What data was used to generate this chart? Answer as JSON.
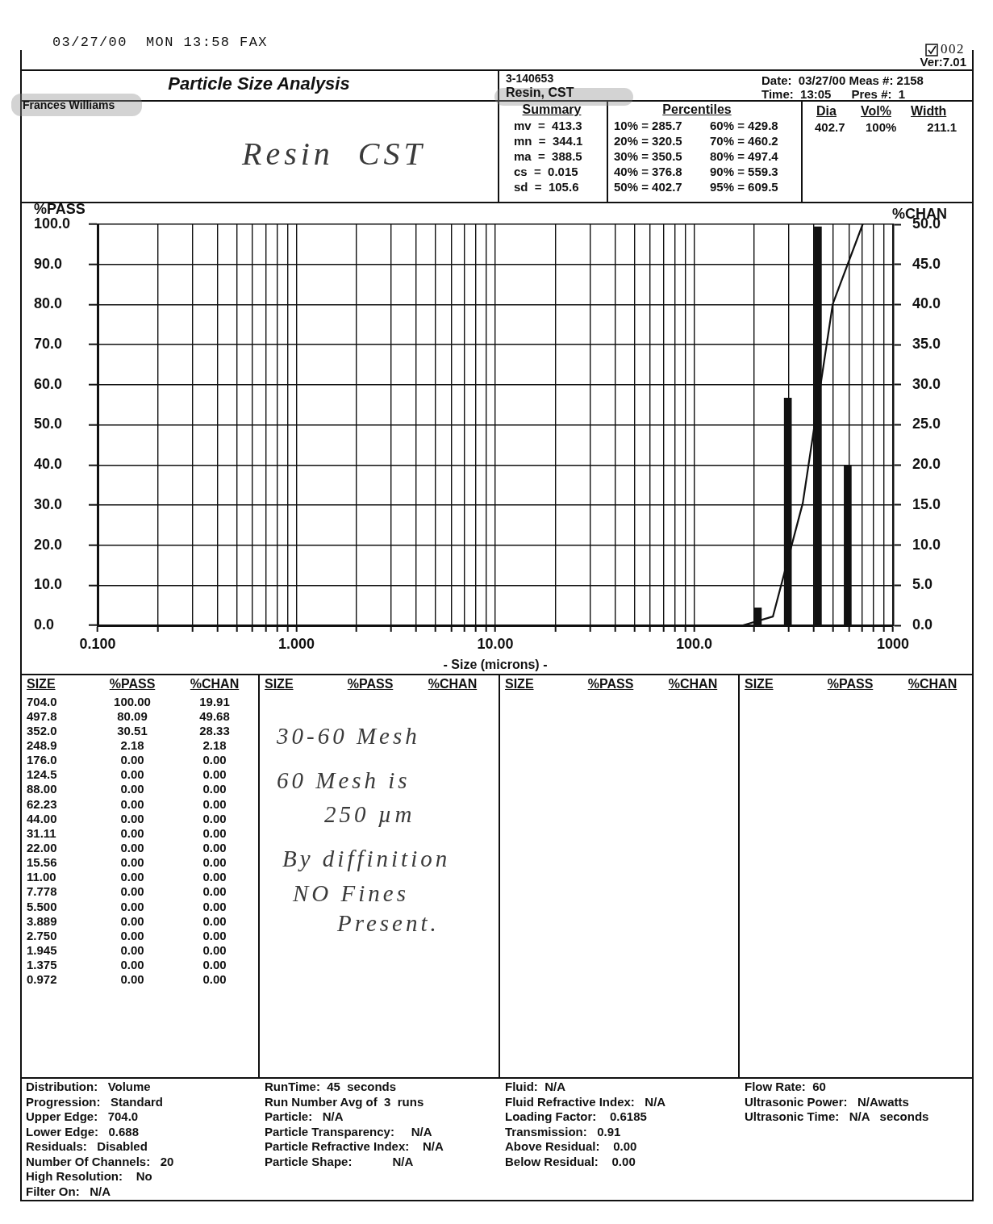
{
  "chart_data": {
    "type": "bar",
    "title": "Particle Size Analysis",
    "xlabel": "- Size (microns) -",
    "ylabel": "%PASS",
    "y2label": "%CHAN",
    "x": [
      704,
      497.8,
      352,
      248.9,
      176,
      124.5,
      88,
      62.23,
      44,
      31.11,
      22,
      15.56,
      11,
      7.778,
      5.5,
      3.889,
      2.75,
      1.945,
      1.375,
      0.972
    ],
    "series": [
      {
        "type": "line",
        "color": "#111111",
        "values": [
          100,
          80.09,
          30.51,
          2.18,
          0,
          0,
          0,
          0,
          0,
          0,
          0,
          0,
          0,
          0,
          0,
          0,
          0,
          0,
          0,
          0
        ]
      },
      {
        "axis": "y2",
        "color": "#111111",
        "x": [
          592,
          419,
          296,
          209,
          148,
          105,
          74,
          52.3,
          37,
          26.2,
          18.5,
          13.1,
          9.25,
          6.54,
          4.62,
          3.27,
          2.31,
          1.64,
          1.16,
          0.818
        ],
        "values": [
          19.91,
          49.68,
          28.33,
          2.18,
          0,
          0,
          0,
          0,
          0,
          0,
          0,
          0,
          0,
          0,
          0,
          0,
          0,
          0,
          0,
          0
        ]
      }
    ],
    "log": "x",
    "grid": true,
    "xlim": [
      0.1,
      1000
    ],
    "xticks": [
      {
        "value": 0.1,
        "label": "0.100"
      },
      {
        "value": 0.2,
        "label": null
      },
      {
        "value": 0.3,
        "label": null
      },
      {
        "value": 0.4,
        "label": null
      },
      {
        "value": 0.5,
        "label": null
      },
      {
        "value": 0.6,
        "label": null
      },
      {
        "value": 0.7,
        "label": null
      },
      {
        "value": 0.8,
        "label": null
      },
      {
        "value": 0.9,
        "label": null
      },
      {
        "value": 1,
        "label": "1.000"
      },
      {
        "value": 2,
        "label": null
      },
      {
        "value": 3,
        "label": null
      },
      {
        "value": 4,
        "label": null
      },
      {
        "value": 5,
        "label": null
      },
      {
        "value": 6,
        "label": null
      },
      {
        "value": 7,
        "label": null
      },
      {
        "value": 8,
        "label": null
      },
      {
        "value": 9,
        "label": null
      },
      {
        "value": 10,
        "label": "10.00"
      },
      {
        "value": 20,
        "label": null
      },
      {
        "value": 30,
        "label": null
      },
      {
        "value": 40,
        "label": null
      },
      {
        "value": 50,
        "label": null
      },
      {
        "value": 60,
        "label": null
      },
      {
        "value": 70,
        "label": null
      },
      {
        "value": 80,
        "label": null
      },
      {
        "value": 90,
        "label": null
      },
      {
        "value": 100,
        "label": "100.0"
      },
      {
        "value": 200,
        "label": null
      },
      {
        "value": 300,
        "label": null
      },
      {
        "value": 400,
        "label": null
      },
      {
        "value": 500,
        "label": null
      },
      {
        "value": 600,
        "label": null
      },
      {
        "value": 700,
        "label": null
      },
      {
        "value": 800,
        "label": null
      },
      {
        "value": 900,
        "label": null
      },
      1000
    ],
    "ylim": [
      0,
      100
    ],
    "yticks": [
      {
        "value": 0,
        "label": "0.0"
      },
      {
        "value": 10,
        "label": "10.0"
      },
      {
        "value": 20,
        "label": "20.0"
      },
      {
        "value": 30,
        "label": "30.0"
      },
      {
        "value": 40,
        "label": "40.0"
      },
      {
        "value": 50,
        "label": "50.0"
      },
      {
        "value": 60,
        "label": "60.0"
      },
      {
        "value": 70,
        "label": "70.0"
      },
      {
        "value": 80,
        "label": "80.0"
      },
      {
        "value": 90,
        "label": "90.0"
      },
      {
        "value": 100,
        "label": "100.0"
      }
    ],
    "y2lim": [
      0,
      50
    ],
    "y2ticks": [
      {
        "value": 0,
        "label": "0.0"
      },
      {
        "value": 5,
        "label": "5.0"
      },
      {
        "value": 10,
        "label": "10.0"
      },
      {
        "value": 15,
        "label": "15.0"
      },
      {
        "value": 20,
        "label": "20.0"
      },
      {
        "value": 25,
        "label": "25.0"
      },
      {
        "value": 30,
        "label": "30.0"
      },
      {
        "value": 35,
        "label": "35.0"
      },
      {
        "value": 40,
        "label": "40.0"
      },
      {
        "value": 45,
        "label": "45.0"
      },
      {
        "value": 50,
        "label": "50.0"
      }
    ],
    "annotations": [
      "03/27/00  MON 13:58 FAX",
      "002",
      "Ver:7.01",
      "Frances Williams",
      "Resin  CST",
      "3-140653",
      "Resin, CST",
      "Date:  03/27/00 Meas #: 2158",
      "Time:  13:05      Pres #:  1",
      "Summary",
      "mv  =  413.3",
      "mn  =  344.1",
      "ma  =  388.5",
      "cs  =  0.015",
      "sd  =  105.6",
      "Percentiles",
      "10% = 285.7",
      "20% = 320.5",
      "30% = 350.5",
      "40% = 376.8",
      "50% = 402.7",
      "60% = 429.8",
      "70% = 460.2",
      "80% = 497.4",
      "90% = 559.3",
      "95% = 609.5",
      "Dia",
      "Vol%",
      "Width",
      "402.7",
      "100%",
      "211.1",
      "SIZE",
      "30-60 Mesh",
      "60 Mesh is",
      "250 µm",
      "By diffinition",
      "NO Fines",
      "Present.",
      "Distribution:   Volume",
      "Progression:   Standard",
      "Upper Edge:   704.0",
      "Lower Edge:   0.688",
      "Residuals:   Disabled",
      "Number Of Channels:   20",
      "High Resolution:    No",
      "Filter On:   N/A",
      "RunTime:  45  seconds",
      "Run Number Avg of  3  runs",
      "Particle:   N/A",
      "Particle Transparency:     N/A",
      "Particle Refractive Index:    N/A",
      "Particle Shape:            N/A",
      "Fluid:  N/A",
      "Fluid Refractive Index:   N/A",
      "Loading Factor:    0.6185",
      "Transmission:   0.91",
      "Above Residual:    0.00",
      "Below Residual:    0.00",
      "Flow Rate:  60",
      "Ultrasonic Power:   N/Awatts",
      "Ultrasonic Time:   N/A   seconds",
      "704.0",
      "497.8",
      "352.0",
      "248.9",
      "176.0",
      "124.5",
      "88.00",
      "62.23",
      "44.00",
      "31.11",
      "22.00",
      "15.56",
      "11.00",
      "7.778",
      "5.500",
      "3.889",
      "2.750",
      "1.945",
      "1.375",
      "0.972",
      "100.00",
      "80.09",
      "30.51",
      "2.18",
      "0.00",
      "0.00",
      "0.00",
      "0.00",
      "0.00",
      "0.00",
      "0.00",
      "0.00",
      "0.00",
      "0.00",
      "0.00",
      "0.00",
      "0.00",
      "0.00",
      "0.00",
      "0.00",
      "19.91",
      "49.68",
      "28.33",
      "2.18",
      "0.00",
      "0.00",
      "0.00",
      "0.00",
      "0.00",
      "0.00",
      "0.00",
      "0.00",
      "0.00",
      "0.00",
      "0.00",
      "0.00",
      "0.00",
      "0.00",
      "0.00",
      "0.00"
    ]
  }
}
